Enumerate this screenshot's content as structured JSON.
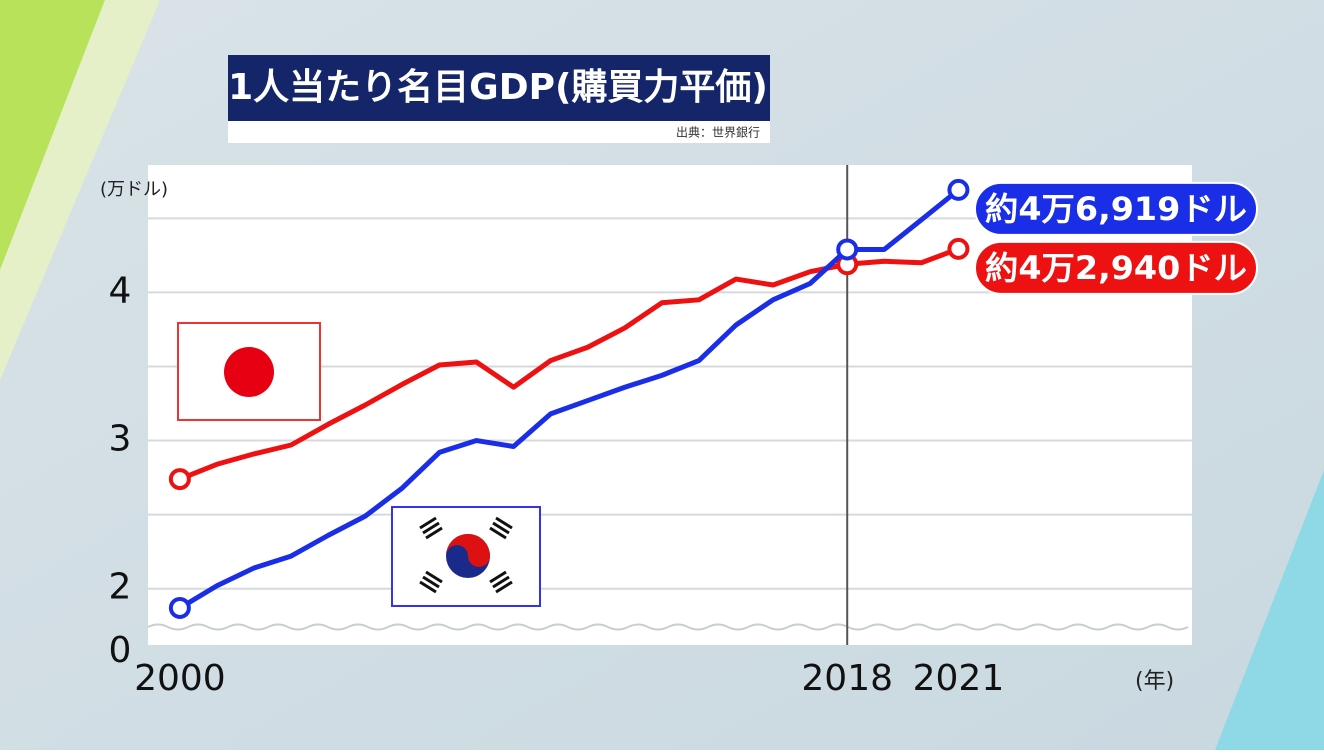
{
  "chart_data": {
    "type": "line",
    "title": "1人当たり名目GDP(購買力平価)",
    "source": "出典：世界銀行",
    "y_unit": "(万ドル)",
    "x_unit": "(年)",
    "axis_break_label": "0",
    "x": [
      2000,
      2001,
      2002,
      2003,
      2004,
      2005,
      2006,
      2007,
      2008,
      2009,
      2010,
      2011,
      2012,
      2013,
      2014,
      2015,
      2016,
      2017,
      2018,
      2019,
      2020,
      2021
    ],
    "series": [
      {
        "color": "#ee1111",
        "values": [
          2.74,
          2.84,
          2.91,
          2.97,
          3.11,
          3.24,
          3.38,
          3.51,
          3.53,
          3.36,
          3.54,
          3.63,
          3.76,
          3.93,
          3.95,
          4.09,
          4.05,
          4.14,
          4.19,
          4.21,
          4.2,
          4.294
        ],
        "end_label": "約4万2,940ドル"
      },
      {
        "color": "#1a2ee8",
        "values": [
          1.87,
          2.02,
          2.14,
          2.22,
          2.36,
          2.49,
          2.68,
          2.92,
          3.0,
          2.96,
          3.18,
          3.27,
          3.36,
          3.44,
          3.54,
          3.78,
          3.95,
          4.06,
          4.29,
          4.29,
          4.49,
          4.6919
        ],
        "end_label": "約4万6,919ドル"
      }
    ],
    "xlim": [
      1999.14,
      2027.3
    ],
    "xticks": [
      2000,
      2018,
      2021
    ],
    "ylim": [
      1.62,
      4.86
    ],
    "yticks": [
      2,
      3,
      4
    ],
    "minor_yticks": [
      2.5,
      3.5,
      4.5
    ],
    "grid": true,
    "reference_x": 2018
  }
}
